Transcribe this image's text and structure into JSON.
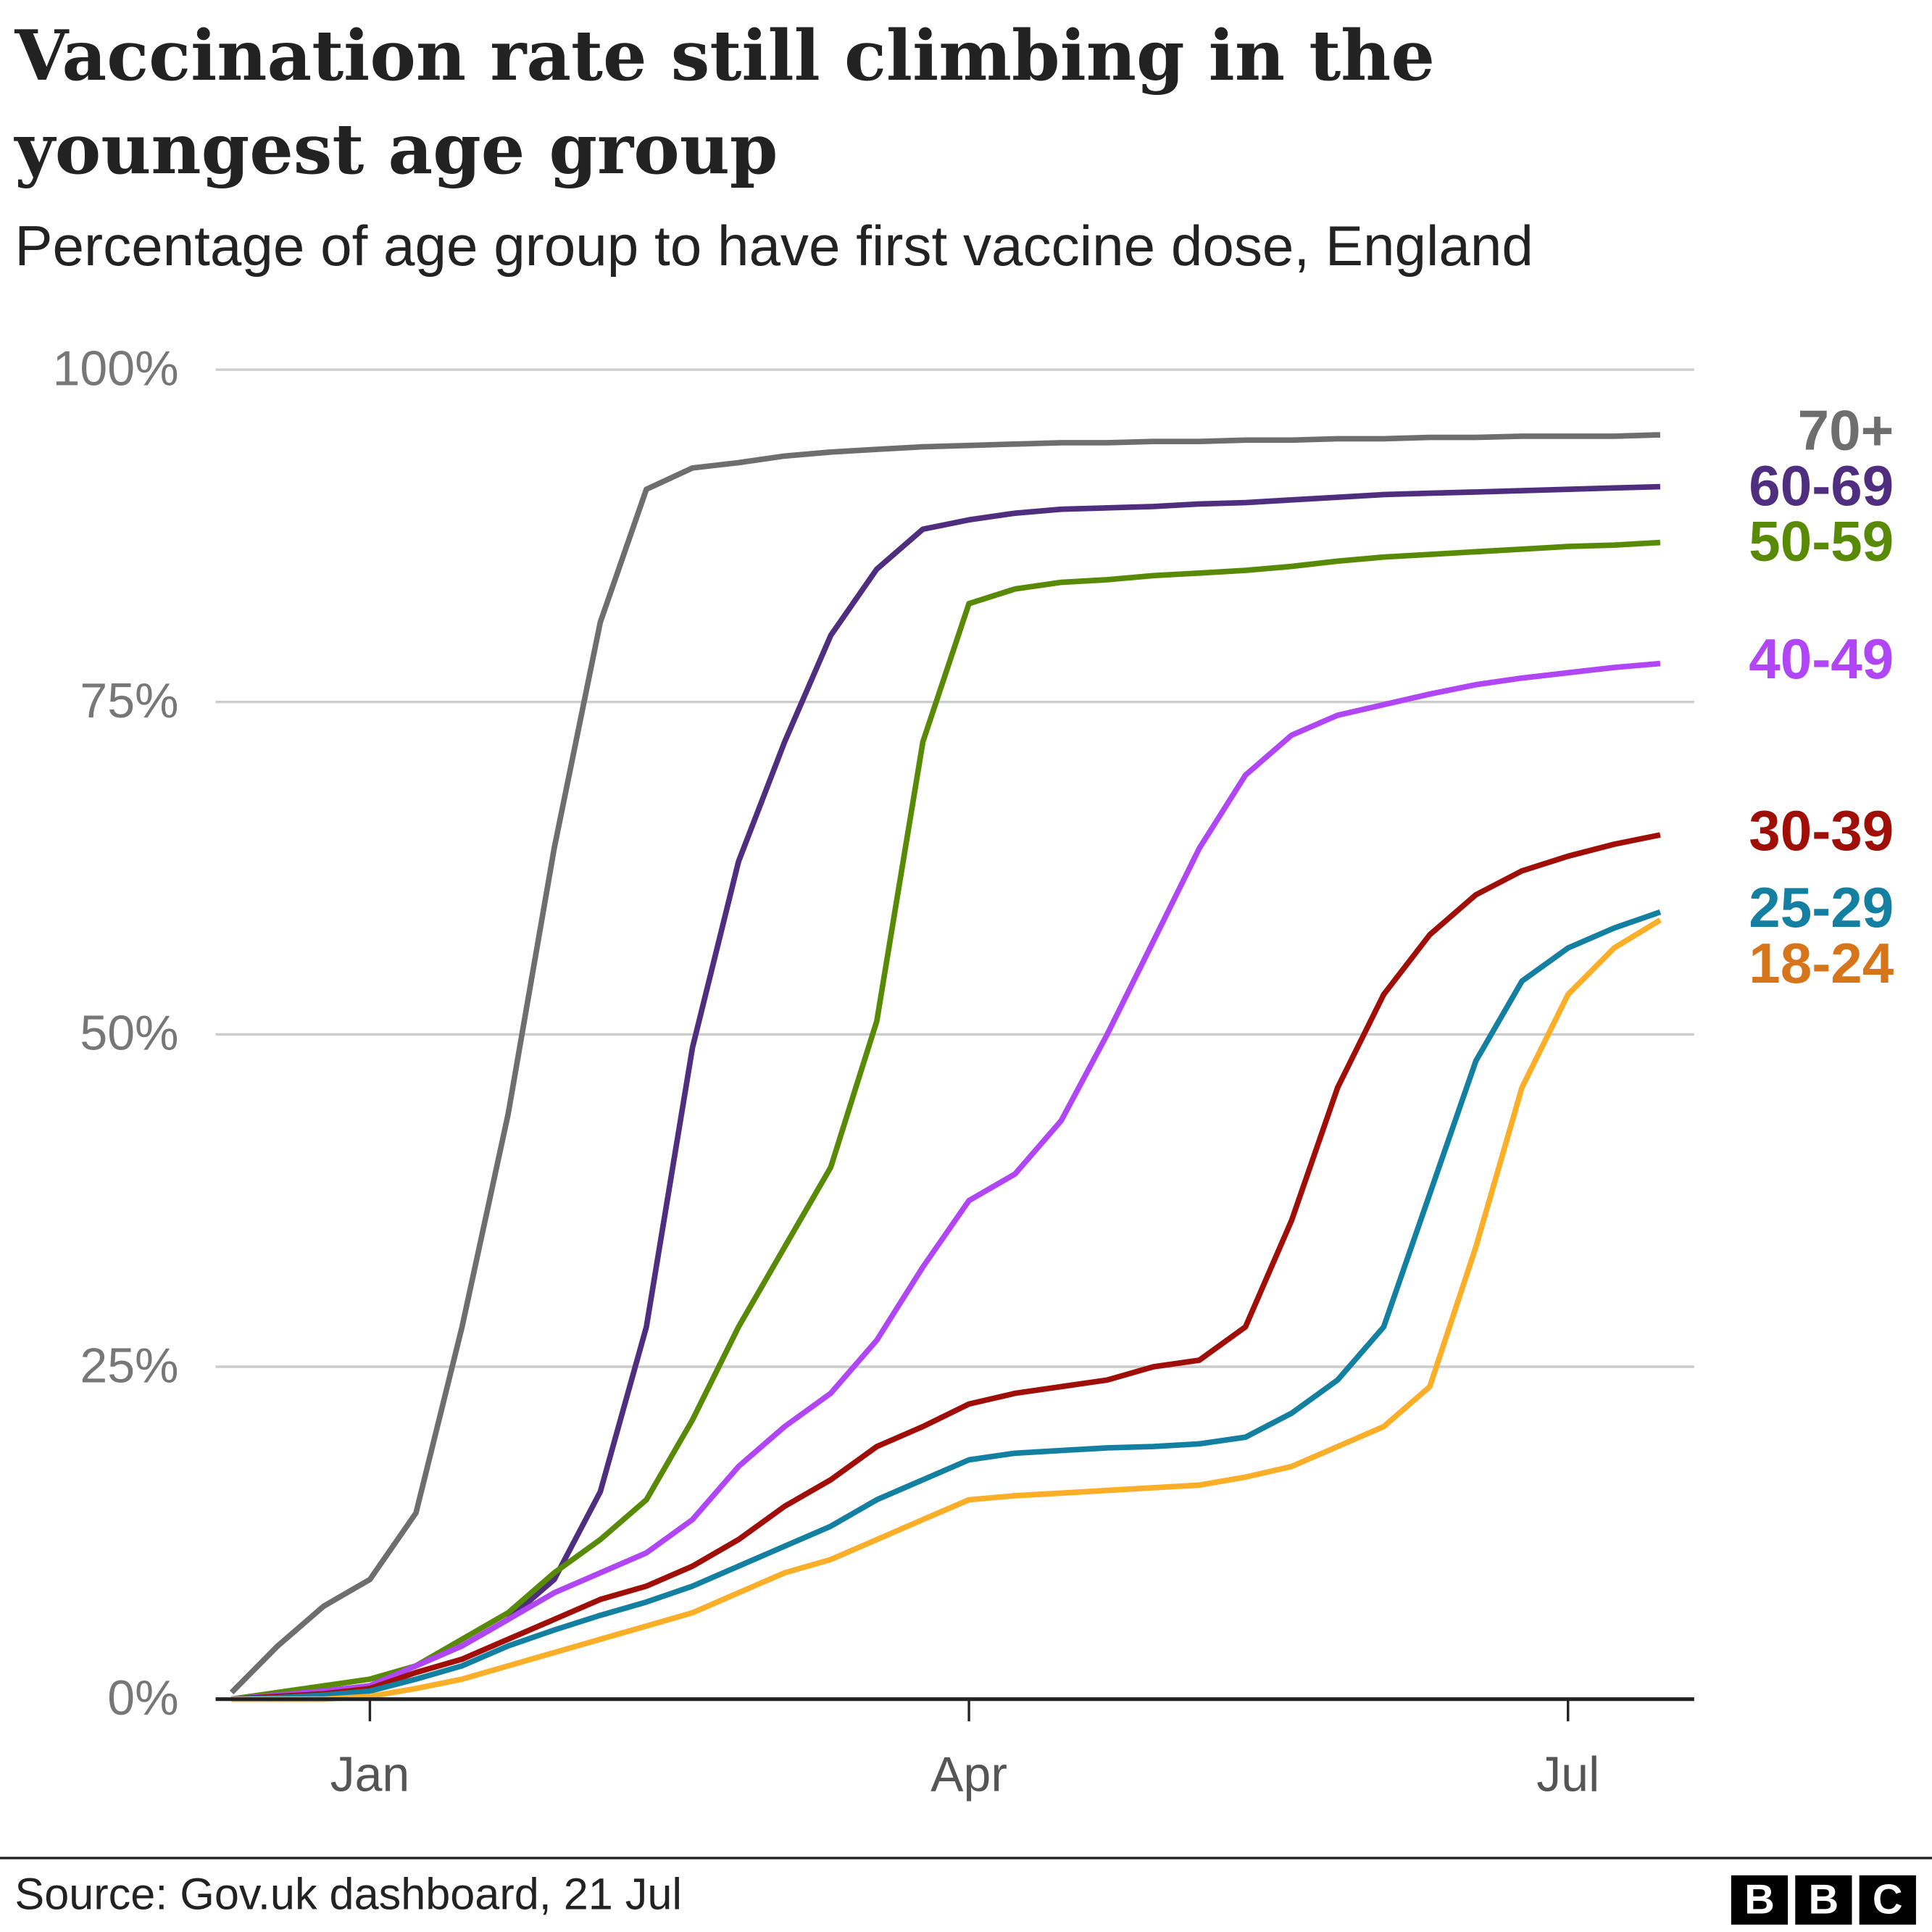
{
  "chart_data": {
    "type": "line",
    "title": "Vaccination rate still climbing in the youngest age group",
    "subtitle": "Percentage of age group to have first vaccine dose, England",
    "source": "Source: Gov.uk dashboard, 21 Jul",
    "logo": [
      "B",
      "B",
      "C"
    ],
    "categories": [
      null,
      null,
      null,
      "Jan",
      null,
      null,
      null,
      null,
      null,
      null,
      null,
      null,
      null,
      null,
      null,
      null,
      "Apr",
      null,
      null,
      null,
      null,
      null,
      null,
      null,
      null,
      null,
      null,
      null,
      null,
      "Jul",
      null,
      null
    ],
    "ylim": [
      0,
      100
    ],
    "yticks": [
      {
        "value": 0,
        "label": "0%"
      },
      {
        "value": 25,
        "label": "25%"
      },
      {
        "value": 50,
        "label": "50%"
      },
      {
        "value": 75,
        "label": "75%"
      },
      {
        "value": 100,
        "label": "100%"
      }
    ],
    "grid": true,
    "series": [
      {
        "name": "70+",
        "color": "#6e6e6e",
        "values": [
          0.5,
          4,
          7,
          9,
          14,
          28,
          44,
          64,
          81,
          91,
          92.6,
          93,
          93.5,
          93.8,
          94,
          94.2,
          94.3,
          94.4,
          94.5,
          94.5,
          94.6,
          94.6,
          94.7,
          94.7,
          94.8,
          94.8,
          94.9,
          94.9,
          95,
          95,
          95,
          95.1
        ]
      },
      {
        "name": "60-69",
        "color": "#4f2d7f",
        "values": [
          0,
          0.3,
          0.6,
          1,
          2.5,
          4,
          6,
          9,
          15.6,
          28,
          49,
          63,
          72,
          80,
          85,
          88,
          88.7,
          89.2,
          89.5,
          89.6,
          89.7,
          89.9,
          90,
          90.2,
          90.4,
          90.6,
          90.7,
          90.8,
          90.9,
          91,
          91.1,
          91.2
        ]
      },
      {
        "name": "50-59",
        "color": "#588a06",
        "values": [
          0,
          0.5,
          1,
          1.5,
          2.5,
          4.5,
          6.5,
          9.5,
          12,
          15,
          21,
          28,
          34,
          40,
          51,
          72,
          82.4,
          83.5,
          84,
          84.2,
          84.5,
          84.7,
          84.9,
          85.2,
          85.6,
          85.9,
          86.1,
          86.3,
          86.5,
          86.7,
          86.8,
          87
        ]
      },
      {
        "name": "40-49",
        "color": "#b046f5",
        "values": [
          0,
          0.3,
          0.6,
          1,
          2.5,
          4,
          6,
          8,
          9.5,
          11,
          13.5,
          17.5,
          20.5,
          23,
          27,
          32.5,
          37.5,
          39.5,
          43.5,
          50,
          57,
          64,
          69.5,
          72.5,
          74,
          74.8,
          75.6,
          76.3,
          76.8,
          77.2,
          77.6,
          77.9
        ]
      },
      {
        "name": "30-39",
        "color": "#a00e08",
        "values": [
          0,
          0.2,
          0.4,
          0.8,
          2,
          3,
          4.5,
          6,
          7.5,
          8.5,
          10,
          12,
          14.5,
          16.5,
          19,
          20.5,
          22.2,
          23,
          23.5,
          24,
          25,
          25.5,
          28,
          36,
          46,
          53,
          57.5,
          60.5,
          62.3,
          63.4,
          64.3,
          65
        ]
      },
      {
        "name": "25-29",
        "color": "#1380a1",
        "values": [
          0,
          0.1,
          0.3,
          0.6,
          1.5,
          2.5,
          4,
          5.2,
          6.3,
          7.3,
          8.5,
          10,
          11.5,
          13,
          15,
          16.5,
          18,
          18.5,
          18.7,
          18.9,
          19,
          19.2,
          19.7,
          21.5,
          24,
          28,
          38,
          48,
          54,
          56.5,
          58,
          59.2
        ]
      },
      {
        "name": "18-24",
        "color": "#fbae28",
        "label_color": "#d7751b",
        "values": [
          0,
          0,
          0,
          0.2,
          0.8,
          1.5,
          2.5,
          3.5,
          4.5,
          5.5,
          6.5,
          8,
          9.5,
          10.5,
          12,
          13.5,
          15,
          15.3,
          15.5,
          15.7,
          15.9,
          16.1,
          16.7,
          17.5,
          19,
          20.5,
          23.5,
          34,
          46,
          53,
          56.5,
          58.6
        ]
      }
    ]
  }
}
